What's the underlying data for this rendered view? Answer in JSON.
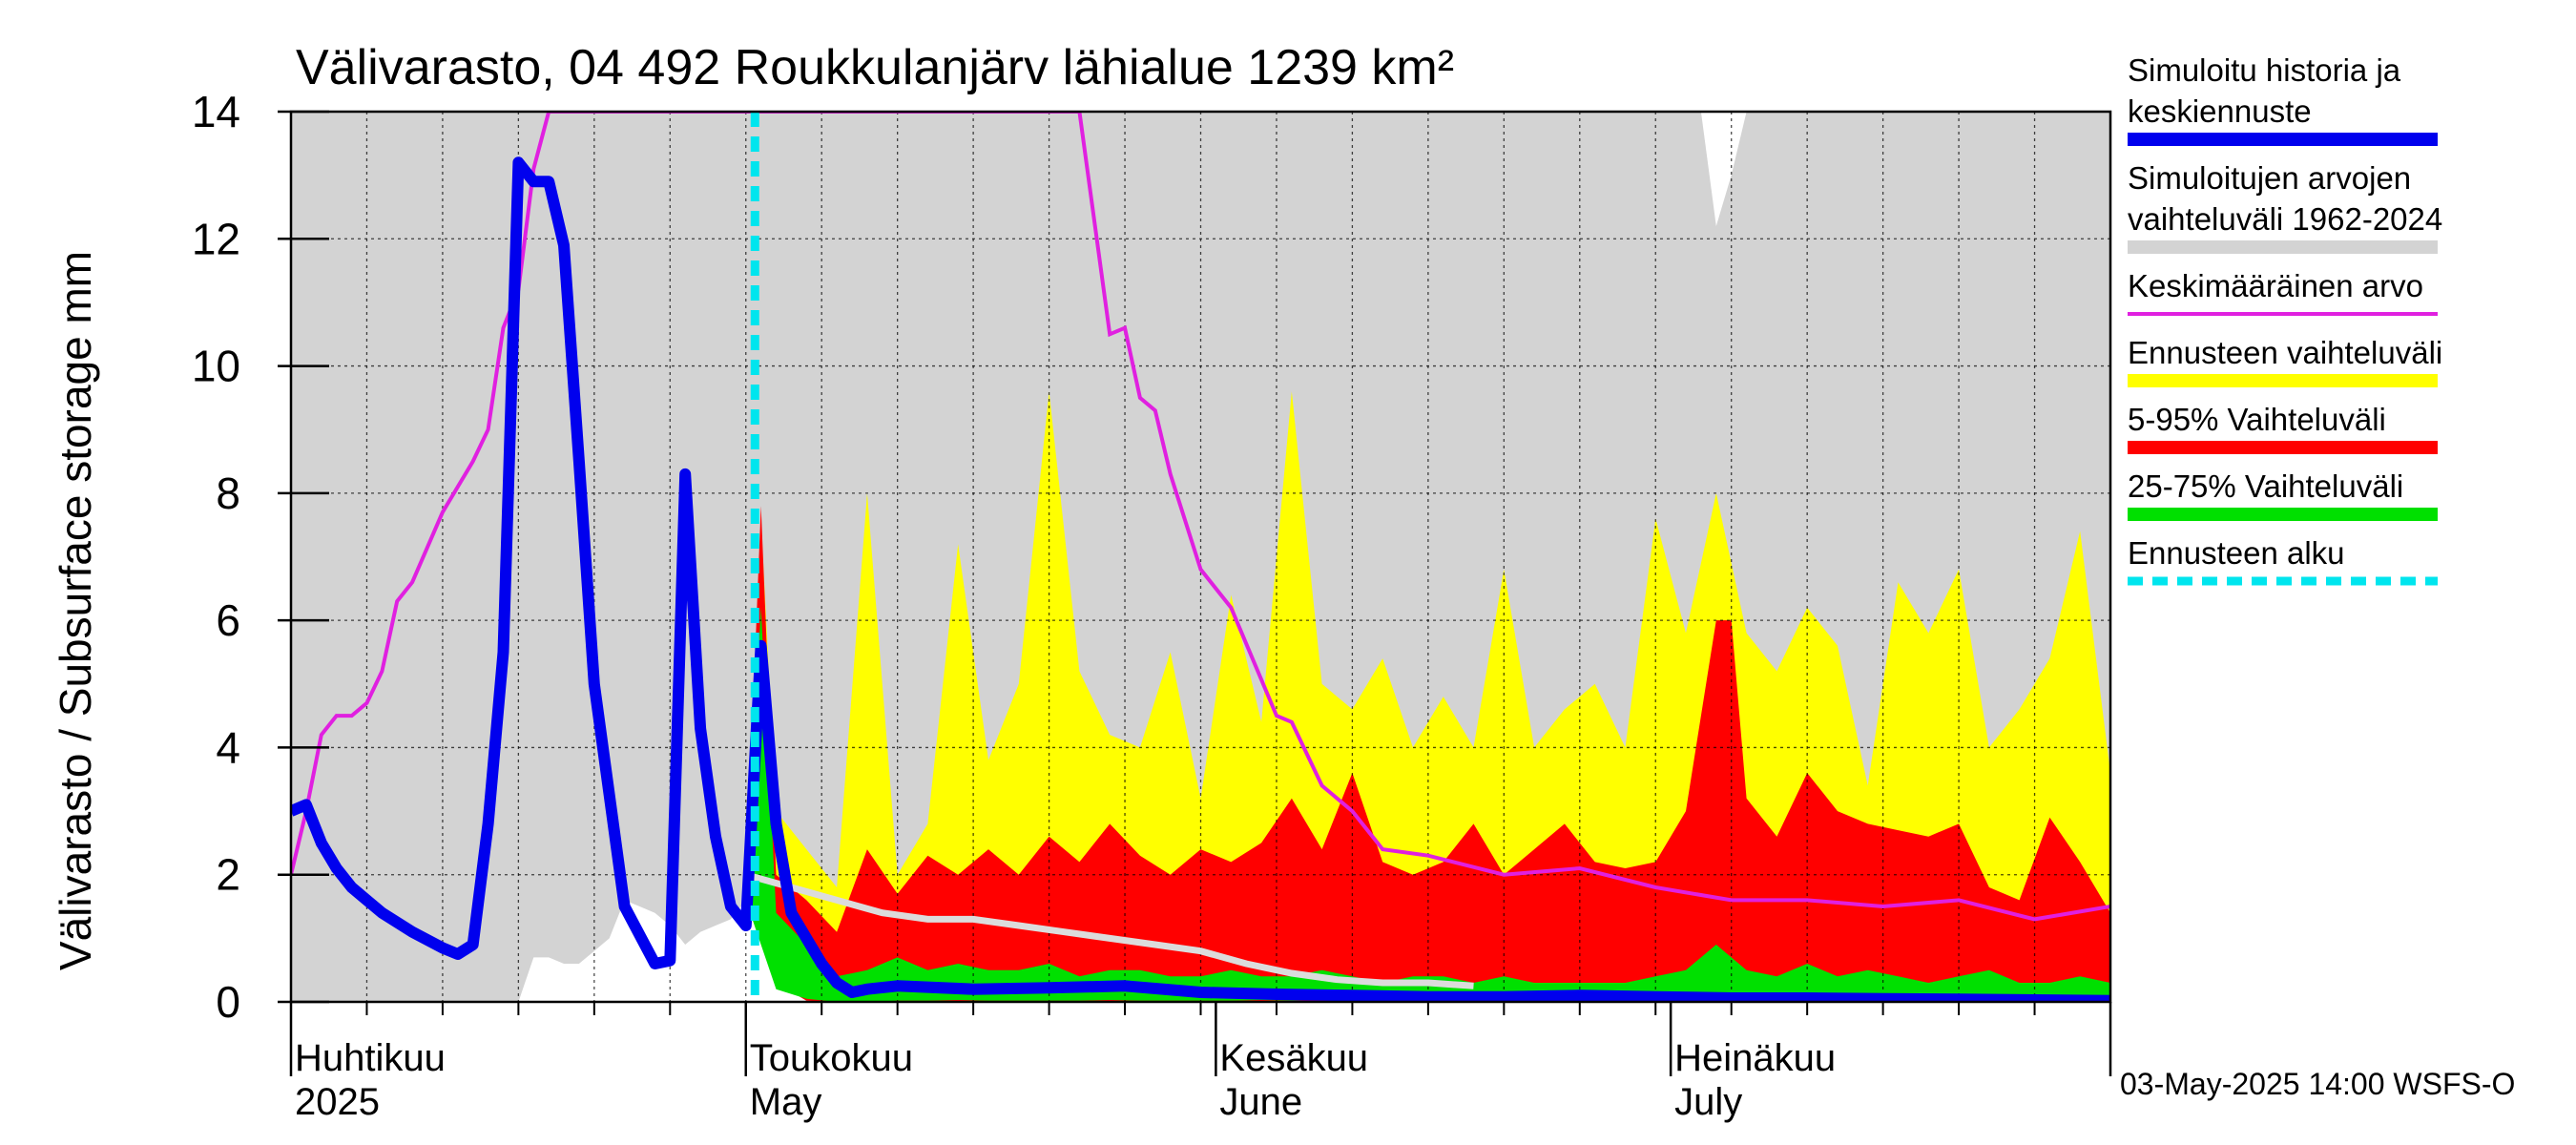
{
  "chart_data": {
    "type": "area",
    "title": "Välivarasto, 04 492 Roukkulanjärv lähialue 1239 km²",
    "ylabel": "Välivarasto / Subsurface storage  mm",
    "ylim": [
      0,
      14
    ],
    "yticks": [
      "0",
      "2",
      "4",
      "6",
      "8",
      "10",
      "12",
      "14"
    ],
    "x_range_days": [
      0,
      120
    ],
    "x_note": "day 0 = 2025-04-01, day 120 = 2025-07-30",
    "month_labels": [
      {
        "day": 0,
        "fi": "Huhtikuu",
        "en": "2025"
      },
      {
        "day": 30,
        "fi": "Toukokuu",
        "en": "May"
      },
      {
        "day": 61,
        "fi": "Kesäkuu",
        "en": "June"
      },
      {
        "day": 91,
        "fi": "Heinäkuu",
        "en": "July"
      }
    ],
    "forecast_start_day": 30.6,
    "footer": "03-May-2025 14:00 WSFS-O",
    "legend": [
      {
        "label": "Simuloitu historia ja keskiennuste",
        "color": "#0000ee",
        "style": "thick"
      },
      {
        "label": "Simuloitujen arvojen vaihteluväli 1962-2024",
        "color": "#d3d3d3",
        "style": "band"
      },
      {
        "label": "Keskimääräinen arvo",
        "color": "#e020e0",
        "style": "thin"
      },
      {
        "label": "Ennusteen vaihteluväli",
        "color": "#ffff00",
        "style": "band"
      },
      {
        "label": "5-95% Vaihteluväli",
        "color": "#ff0000",
        "style": "band"
      },
      {
        "label": "25-75% Vaihteluväli",
        "color": "#00e000",
        "style": "band"
      },
      {
        "label": "Ennusteen alku",
        "color": "#00e5ee",
        "style": "dashed"
      }
    ],
    "series": [
      {
        "name": "Simuloitu historia ja keskiennuste",
        "x": [
          0,
          1,
          2,
          3,
          4,
          6,
          8,
          10,
          11,
          12,
          13,
          14,
          15,
          16,
          17,
          18,
          19,
          20,
          22,
          24,
          25,
          26,
          27,
          28,
          29,
          30,
          31,
          32,
          33,
          34,
          35,
          36,
          37,
          38,
          40,
          45,
          50,
          55,
          60,
          65,
          70,
          75,
          80,
          85,
          90,
          95,
          100,
          105,
          110,
          115,
          120
        ],
        "values": [
          3.0,
          3.1,
          2.5,
          2.1,
          1.8,
          1.4,
          1.1,
          0.85,
          0.75,
          0.9,
          2.8,
          5.5,
          13.2,
          12.9,
          12.9,
          11.9,
          8.5,
          5.0,
          1.5,
          0.6,
          0.65,
          8.3,
          4.3,
          2.6,
          1.5,
          1.2,
          5.6,
          2.8,
          1.4,
          1.0,
          0.6,
          0.3,
          0.15,
          0.2,
          0.25,
          0.2,
          0.22,
          0.25,
          0.15,
          0.12,
          0.1,
          0.08,
          0.08,
          0.1,
          0.08,
          0.06,
          0.06,
          0.05,
          0.04,
          0.03,
          0.02
        ]
      },
      {
        "name": "Keskimääräinen arvo",
        "x": [
          0,
          1,
          2,
          3,
          4,
          5,
          6,
          7,
          8,
          10,
          12,
          13,
          14,
          15,
          16,
          17,
          18,
          52,
          54,
          55,
          56,
          57,
          58,
          60,
          62,
          65,
          66,
          68,
          70,
          72,
          75,
          80,
          85,
          90,
          95,
          100,
          105,
          110,
          115,
          120
        ],
        "values": [
          2.0,
          3.0,
          4.2,
          4.5,
          4.5,
          4.7,
          5.2,
          6.3,
          6.6,
          7.7,
          8.5,
          9.0,
          10.6,
          11.2,
          13.1,
          14.5,
          16.0,
          14.5,
          10.5,
          10.6,
          9.5,
          9.3,
          8.3,
          6.8,
          6.2,
          4.5,
          4.4,
          3.4,
          3.0,
          2.4,
          2.3,
          2.0,
          2.1,
          1.8,
          1.6,
          1.6,
          1.5,
          1.6,
          1.3,
          1.5
        ]
      },
      {
        "name": "Keskiennusteen lumi / white history median",
        "x": [
          30,
          33,
          36,
          39,
          42,
          45,
          48,
          51,
          54,
          57,
          60,
          63,
          66,
          69,
          72,
          75,
          78
        ],
        "values": [
          2.0,
          1.8,
          1.6,
          1.4,
          1.3,
          1.3,
          1.2,
          1.1,
          1.0,
          0.9,
          0.8,
          0.6,
          0.45,
          0.35,
          0.3,
          0.3,
          0.25
        ]
      }
    ],
    "bands": [
      {
        "name": "Simuloitujen arvojen vaihteluväli 1962-2024",
        "x": [
          0,
          10,
          15,
          16,
          17,
          18,
          19,
          20,
          21,
          22,
          23,
          24,
          25,
          26,
          27,
          28,
          29,
          30,
          32,
          34,
          36,
          40,
          45,
          50,
          55,
          60,
          65,
          70,
          75,
          80,
          85,
          90,
          91,
          92,
          93,
          94,
          95,
          96,
          97,
          100,
          105,
          110,
          115,
          120
        ],
        "low": [
          0,
          0,
          0,
          0.7,
          0.7,
          0.6,
          0.6,
          0.8,
          1.0,
          1.6,
          1.5,
          1.4,
          1.2,
          0.9,
          1.1,
          1.2,
          1.3,
          1.6,
          1.2,
          0.8,
          0.6,
          0.4,
          0.3,
          0.2,
          0.15,
          0.1,
          0.1,
          0.1,
          0.1,
          0.1,
          0.1,
          0.1,
          0.1,
          0.1,
          0.1,
          0.1,
          0.1,
          0.1,
          0.1,
          0.1,
          0.1,
          0.05,
          0.05,
          0.05
        ],
        "high": [
          14,
          14,
          14,
          14,
          14,
          14,
          14,
          14,
          14,
          14,
          14,
          14,
          14,
          14,
          14,
          14,
          14,
          14,
          14,
          14,
          14,
          14,
          14,
          14,
          14,
          14,
          14,
          14,
          14,
          14,
          14,
          14,
          14,
          14,
          14,
          12.2,
          13.0,
          14,
          14,
          14,
          14,
          14,
          14,
          14
        ]
      },
      {
        "name": "Ennusteen vaihteluväli",
        "x": [
          30,
          31,
          32,
          34,
          36,
          38,
          40,
          42,
          44,
          46,
          48,
          50,
          52,
          54,
          56,
          58,
          60,
          62,
          64,
          66,
          68,
          70,
          72,
          74,
          76,
          78,
          80,
          82,
          84,
          86,
          88,
          90,
          92,
          94,
          96,
          98,
          100,
          102,
          104,
          106,
          108,
          110,
          112,
          114,
          116,
          118,
          120
        ],
        "low": [
          2.0,
          1.2,
          0.4,
          0.05,
          0,
          0,
          0,
          0,
          0,
          0,
          0,
          0,
          0,
          0,
          0,
          0,
          0,
          0,
          0,
          0,
          0,
          0,
          0,
          0,
          0,
          0,
          0,
          0,
          0,
          0,
          0,
          0,
          0,
          0,
          0,
          0,
          0,
          0,
          0,
          0,
          0,
          0,
          0,
          0,
          0,
          0,
          0
        ],
        "high": [
          2.0,
          7.6,
          3.0,
          2.4,
          1.8,
          8.0,
          2.0,
          2.8,
          7.2,
          3.8,
          5.0,
          9.6,
          5.2,
          4.2,
          4.0,
          5.5,
          3.2,
          6.4,
          4.4,
          9.6,
          5.0,
          4.6,
          5.4,
          4.0,
          4.8,
          4.0,
          6.8,
          4.0,
          4.6,
          5.0,
          4.0,
          7.6,
          5.8,
          8.0,
          5.8,
          5.2,
          6.2,
          5.6,
          3.4,
          6.6,
          5.8,
          6.8,
          4.0,
          4.6,
          5.4,
          7.4,
          3.6
        ]
      },
      {
        "name": "5-95% Vaihteluväli",
        "x": [
          30,
          31,
          32,
          34,
          36,
          38,
          40,
          42,
          44,
          46,
          48,
          50,
          52,
          54,
          56,
          58,
          60,
          62,
          64,
          66,
          68,
          70,
          72,
          74,
          76,
          78,
          80,
          82,
          84,
          86,
          88,
          90,
          92,
          94,
          95,
          96,
          98,
          100,
          102,
          104,
          106,
          108,
          110,
          112,
          114,
          116,
          118,
          120
        ],
        "low": [
          1.8,
          1.0,
          0.3,
          0.02,
          0,
          0,
          0,
          0,
          0,
          0,
          0,
          0,
          0,
          0,
          0,
          0,
          0,
          0,
          0,
          0,
          0,
          0,
          0,
          0,
          0,
          0,
          0,
          0,
          0,
          0,
          0,
          0,
          0,
          0,
          0,
          0,
          0,
          0,
          0,
          0,
          0,
          0,
          0,
          0,
          0,
          0,
          0,
          0
        ],
        "high": [
          1.8,
          7.8,
          2.0,
          1.6,
          1.1,
          2.4,
          1.7,
          2.3,
          2.0,
          2.4,
          2.0,
          2.6,
          2.2,
          2.8,
          2.3,
          2.0,
          2.4,
          2.2,
          2.5,
          3.2,
          2.4,
          3.6,
          2.2,
          2.0,
          2.2,
          2.8,
          2.0,
          2.4,
          2.8,
          2.2,
          2.1,
          2.2,
          3.0,
          6.0,
          6.0,
          3.2,
          2.6,
          3.6,
          3.0,
          2.8,
          2.7,
          2.6,
          2.8,
          1.8,
          1.6,
          2.9,
          2.2,
          1.4
        ]
      },
      {
        "name": "25-75% Vaihteluväli",
        "x": [
          30,
          31,
          32,
          34,
          36,
          38,
          40,
          42,
          44,
          46,
          48,
          50,
          52,
          54,
          56,
          58,
          60,
          62,
          64,
          66,
          68,
          70,
          72,
          74,
          76,
          78,
          80,
          82,
          84,
          86,
          88,
          90,
          92,
          94,
          96,
          98,
          100,
          102,
          104,
          106,
          108,
          110,
          112,
          114,
          116,
          118,
          120
        ],
        "low": [
          1.6,
          0.9,
          0.2,
          0.05,
          0,
          0,
          0.02,
          0.02,
          0.03,
          0.02,
          0.02,
          0.02,
          0.02,
          0.03,
          0.02,
          0.02,
          0.02,
          0.02,
          0.03,
          0.02,
          0.03,
          0.02,
          0.02,
          0.02,
          0.02,
          0.02,
          0.02,
          0.02,
          0.02,
          0.02,
          0.02,
          0.02,
          0.02,
          0.02,
          0.02,
          0.02,
          0.02,
          0.02,
          0.02,
          0.02,
          0.02,
          0.02,
          0.02,
          0.02,
          0.01,
          0.01,
          0.01
        ],
        "high": [
          1.6,
          6.2,
          1.4,
          0.9,
          0.4,
          0.5,
          0.7,
          0.5,
          0.6,
          0.5,
          0.5,
          0.6,
          0.4,
          0.5,
          0.5,
          0.4,
          0.4,
          0.5,
          0.4,
          0.4,
          0.5,
          0.4,
          0.3,
          0.4,
          0.4,
          0.3,
          0.4,
          0.3,
          0.3,
          0.3,
          0.3,
          0.4,
          0.5,
          0.9,
          0.5,
          0.4,
          0.6,
          0.4,
          0.5,
          0.4,
          0.3,
          0.4,
          0.5,
          0.3,
          0.3,
          0.4,
          0.3
        ]
      }
    ]
  }
}
